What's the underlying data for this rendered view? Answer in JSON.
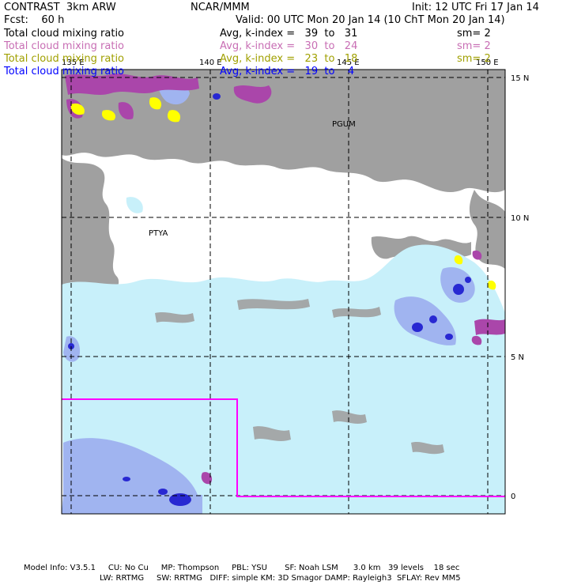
{
  "header": {
    "model": "CONTRAST  3km ARW",
    "center": "NCAR/MMM",
    "init": "Init: 12 UTC Fri 17 Jan 14",
    "fcst": "Fcst:    60 h",
    "valid": "Valid: 00 UTC Mon 20 Jan 14 (10 ChT Mon 20 Jan 14)"
  },
  "legend": [
    {
      "name": "Total cloud mixing ratio",
      "stat": "Avg, k-index =   39  to   31",
      "sm": "sm= 2",
      "color": "#000000"
    },
    {
      "name": "Total cloud mixing ratio",
      "stat": "Avg, k-index =   30  to   24",
      "sm": "sm= 2",
      "color": "#c86eb4"
    },
    {
      "name": "Total cloud mixing ratio",
      "stat": "Avg, k-index =   23  to   18",
      "sm": "sm= 2",
      "color": "#a0a000"
    },
    {
      "name": "Total cloud mixing ratio",
      "stat": "Avg, k-index =   19  to    4",
      "sm": "",
      "color": "#0000ff"
    }
  ],
  "map": {
    "lon_labels": [
      "135 E",
      "140 E",
      "145 E",
      "150 E"
    ],
    "lat_labels": [
      "15 N",
      "10 N",
      "5 N",
      "0"
    ],
    "places": [
      "PGUM",
      "PTYA"
    ],
    "colors": {
      "gray_cloud": "#a0a0a0",
      "light_blue": "#c8f0fa",
      "mid_blue": "#a0b4f0",
      "dark_blue": "#2828d2",
      "purple": "#aa46aa",
      "yellow": "#ffff00",
      "box": "#ff00ff"
    }
  },
  "footer": {
    "line1": "Model Info: V3.5.1     CU: No Cu     MP: Thompson     PBL: YSU       SF: Noah LSM      3.0 km   39 levels    18 sec",
    "line2": "LW: RRTMG     SW: RRTMG   DIFF: simple KM: 3D Smagor DAMP: Rayleigh3  SFLAY: Rev MM5"
  }
}
